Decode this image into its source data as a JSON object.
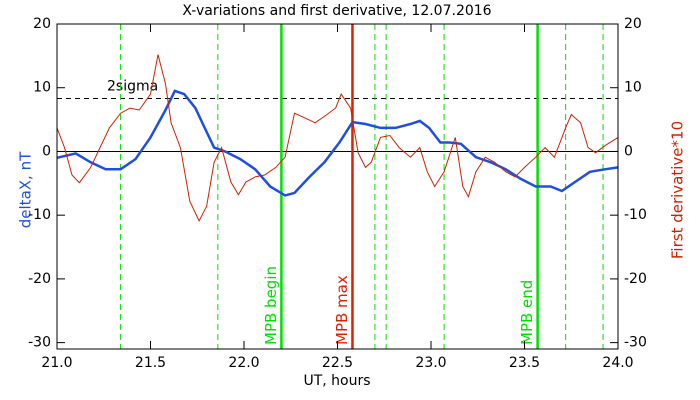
{
  "chart_data": {
    "type": "line",
    "title": "X-variations and first derivative, 12.07.2016",
    "xlabel": "UT, hours",
    "ylabel": "deltaX, nT",
    "y2label": "First derivative*10",
    "xlim": [
      21,
      24
    ],
    "xticks": [
      {
        "value": 21,
        "label": "21.0"
      },
      21.5,
      {
        "value": 22,
        "label": "22.0"
      },
      22.5,
      {
        "value": 23,
        "label": "23.0"
      },
      23.5,
      {
        "value": 24,
        "label": "24.0"
      }
    ],
    "ylim": [
      -31,
      20
    ],
    "yticks": [
      20,
      10,
      0,
      -10,
      -20,
      -30
    ],
    "y2lim": [
      -31,
      20
    ],
    "y2ticks": [
      20,
      10,
      0,
      -10,
      -20,
      -30
    ],
    "series": [
      {
        "name": "deltaX",
        "color": "#1f4fe0",
        "axis": "y",
        "x": [
          21.0,
          21.1,
          21.18,
          21.26,
          21.34,
          21.42,
          21.5,
          21.58,
          21.63,
          21.68,
          21.74,
          21.79,
          21.84,
          21.9,
          21.98,
          22.06,
          22.14,
          22.22,
          22.27,
          22.35,
          22.43,
          22.51,
          22.58,
          22.65,
          22.73,
          22.81,
          22.89,
          22.94,
          22.99,
          23.05,
          23.1,
          23.16,
          23.24,
          23.32,
          23.4,
          23.48,
          23.56,
          23.64,
          23.7,
          23.77,
          23.85,
          23.93,
          24.0
        ],
        "values": [
          -1,
          -0.3,
          -1.7,
          -2.8,
          -2.8,
          -1.2,
          2.2,
          6.5,
          9.5,
          9,
          6.8,
          3.7,
          0.6,
          0,
          -1.2,
          -2.8,
          -5.5,
          -6.9,
          -6.5,
          -4,
          -1.7,
          1.4,
          4.6,
          4.3,
          3.7,
          3.7,
          4.3,
          4.8,
          3.7,
          1.4,
          1.4,
          1.2,
          -0.9,
          -1.7,
          -2.8,
          -4.3,
          -5.5,
          -5.5,
          -6.2,
          -4.8,
          -3.2,
          -2.8,
          -2.5
        ]
      },
      {
        "name": "First derivative*10",
        "color": "#d02000",
        "axis": "y2",
        "x": [
          21.0,
          21.04,
          21.08,
          21.12,
          21.18,
          21.23,
          21.28,
          21.34,
          21.39,
          21.44,
          21.5,
          21.54,
          21.58,
          21.61,
          21.66,
          21.71,
          21.76,
          21.8,
          21.84,
          21.88,
          21.93,
          21.97,
          22.01,
          22.06,
          22.11,
          22.17,
          22.22,
          22.27,
          22.33,
          22.38,
          22.43,
          22.49,
          22.52,
          22.57,
          22.61,
          22.65,
          22.68,
          22.73,
          22.78,
          22.83,
          22.89,
          22.94,
          22.98,
          23.02,
          23.07,
          23.13,
          23.17,
          23.2,
          23.24,
          23.29,
          23.34,
          23.4,
          23.45,
          23.5,
          23.56,
          23.61,
          23.66,
          23.72,
          23.75,
          23.8,
          23.84,
          23.88,
          23.93,
          24.0
        ],
        "values": [
          3.7,
          0.6,
          -3.7,
          -4.9,
          -2.5,
          0.6,
          3.7,
          6,
          6.8,
          6.5,
          9,
          15.2,
          10.6,
          4.5,
          0.6,
          -7.8,
          -10.9,
          -8.6,
          -1.7,
          0.6,
          -4.8,
          -6.8,
          -4.8,
          -4,
          -3.7,
          -2.5,
          -0.9,
          6,
          5.2,
          4.5,
          5.5,
          6.8,
          9,
          6.8,
          -0.2,
          -2.5,
          -1.7,
          2.2,
          2.5,
          0.6,
          -0.9,
          0.6,
          -3.2,
          -5.5,
          -3.2,
          2.2,
          -5.5,
          -7.1,
          -3.2,
          -0.9,
          -1.7,
          -3.2,
          -4,
          -2.5,
          -0.9,
          0.6,
          -0.9,
          3.7,
          5.8,
          4.5,
          0.6,
          -0.2,
          0.9,
          2.2
        ]
      }
    ],
    "vlines": [
      {
        "x": 22.2,
        "label": "MPB begin",
        "color": "#00e000",
        "style": "solid"
      },
      {
        "x": 22.58,
        "label": "MPB max",
        "color": "#e02000",
        "style": "solid"
      },
      {
        "x": 23.57,
        "label": "MPB end",
        "color": "#00e000",
        "style": "solid"
      },
      {
        "x": 21.34,
        "color": "#00e000",
        "style": "dashed"
      },
      {
        "x": 21.86,
        "color": "#00e000",
        "style": "dashed"
      },
      {
        "x": 22.7,
        "color": "#00e000",
        "style": "dashed"
      },
      {
        "x": 22.76,
        "color": "#00e000",
        "style": "dashed"
      },
      {
        "x": 23.07,
        "color": "#00e000",
        "style": "dashed"
      },
      {
        "x": 23.72,
        "color": "#00e000",
        "style": "dashed"
      },
      {
        "x": 23.92,
        "color": "#00e000",
        "style": "dashed"
      }
    ],
    "hlines": [
      {
        "y": 8.3,
        "label": "2sigma",
        "color": "#000000",
        "style": "dashed"
      },
      {
        "y": 0,
        "color": "#000000",
        "style": "solid"
      }
    ]
  }
}
